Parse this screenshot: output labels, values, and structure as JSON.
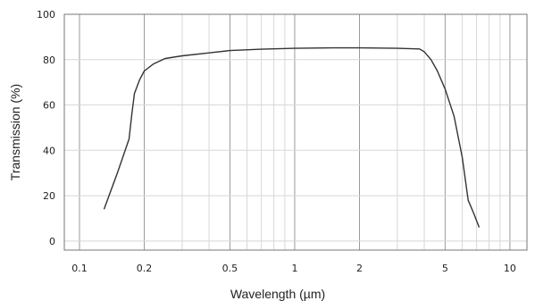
{
  "chart_data": {
    "type": "line",
    "title": "",
    "xlabel": "Wavelength (µm)",
    "ylabel": "Transmission (%)",
    "x_scale": "log",
    "xlim": [
      0.085,
      12
    ],
    "ylim": [
      -4,
      100
    ],
    "grid": true,
    "legend": "none",
    "x_ticks": [
      {
        "value": 0.1,
        "label": "0.1"
      },
      {
        "value": 0.2,
        "label": "0.2"
      },
      {
        "value": 0.5,
        "label": "0.5"
      },
      {
        "value": 1,
        "label": "1"
      },
      {
        "value": 2,
        "label": "2"
      },
      {
        "value": 5,
        "label": "5"
      },
      {
        "value": 10,
        "label": "10"
      }
    ],
    "x_minor_grid": [
      0.3,
      0.4,
      0.6,
      0.7,
      0.8,
      0.9,
      3,
      4,
      6,
      7,
      8,
      9
    ],
    "y_ticks": [
      {
        "value": 0,
        "label": "0"
      },
      {
        "value": 20,
        "label": "20"
      },
      {
        "value": 40,
        "label": "40"
      },
      {
        "value": 60,
        "label": "60"
      },
      {
        "value": 80,
        "label": "80"
      },
      {
        "value": 100,
        "label": "100"
      }
    ],
    "series": [
      {
        "name": "",
        "color": "#333333",
        "x": [
          0.13,
          0.15,
          0.17,
          0.175,
          0.18,
          0.19,
          0.2,
          0.22,
          0.25,
          0.3,
          0.4,
          0.5,
          0.7,
          1.0,
          1.5,
          2.0,
          3.0,
          3.5,
          3.8,
          4.0,
          4.3,
          4.6,
          5.0,
          5.5,
          6.0,
          6.4,
          6.8,
          7.2
        ],
        "y": [
          14,
          30,
          45,
          56,
          65,
          71,
          75,
          78,
          80.5,
          81.7,
          83,
          84,
          84.6,
          85,
          85.2,
          85.2,
          85,
          84.8,
          84.7,
          83.5,
          80,
          75,
          67,
          55,
          37,
          18,
          12,
          6
        ]
      }
    ],
    "colors": {
      "grid_major": "#9a9a9a",
      "grid_minor": "#d8d8d8",
      "frame": "#777777",
      "line": "#333333"
    }
  }
}
